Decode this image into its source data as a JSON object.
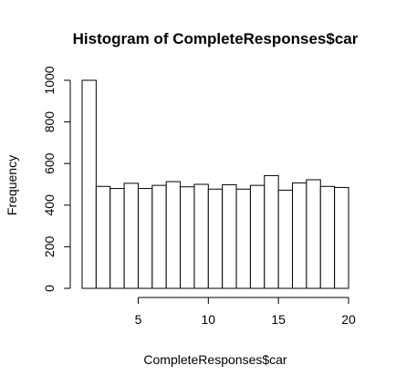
{
  "chart_data": {
    "type": "bar",
    "title": "Histogram of CompleteResponses$car",
    "xlabel": "CompleteResponses$car",
    "ylabel": "Frequency",
    "bin_edges": [
      1,
      2,
      3,
      4,
      5,
      6,
      7,
      8,
      9,
      10,
      11,
      12,
      13,
      14,
      15,
      16,
      17,
      18,
      19,
      20
    ],
    "values": [
      1000,
      490,
      480,
      505,
      480,
      495,
      513,
      488,
      500,
      477,
      498,
      477,
      495,
      542,
      472,
      507,
      522,
      490,
      485
    ],
    "xlim": [
      1,
      20
    ],
    "ylim": [
      0,
      1000
    ],
    "x_ticks": [
      5,
      10,
      15,
      20
    ],
    "y_ticks": [
      0,
      200,
      400,
      600,
      800,
      1000
    ],
    "grid": false,
    "bar_fill": "#ffffff",
    "bar_stroke": "#000000"
  }
}
